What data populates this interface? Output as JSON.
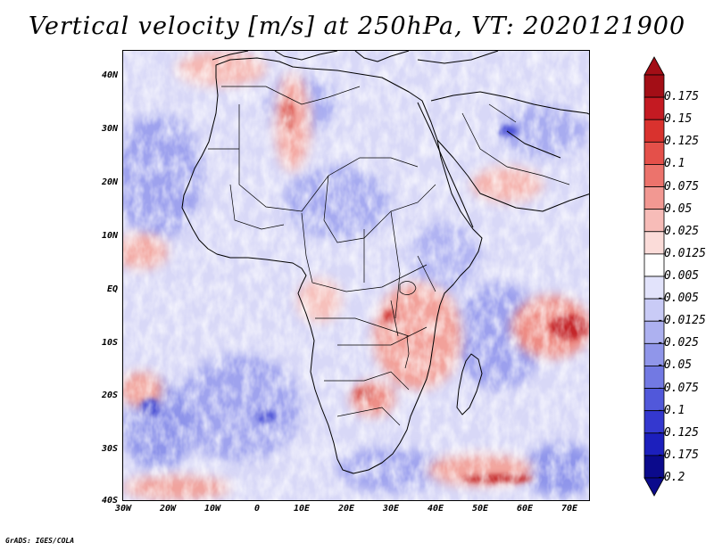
{
  "title": "Vertical velocity [m/s] at 250hPa, VT: 2020121900",
  "footer": {
    "credit": "GrADS: IGES/COLA"
  },
  "map": {
    "variable": "Vertical velocity",
    "units": "m/s",
    "level": "250hPa",
    "valid_time": "2020121900",
    "region": "Africa",
    "lon_range_deg": [
      -30,
      75
    ],
    "lat_range_deg": [
      -40,
      45
    ],
    "lat_ticks": [
      "40N",
      "30N",
      "20N",
      "10N",
      "EQ",
      "10S",
      "20S",
      "30S",
      "40S"
    ],
    "lon_ticks": [
      "30W",
      "20W",
      "10W",
      "0",
      "10E",
      "20E",
      "30E",
      "40E",
      "50E",
      "60E",
      "70E"
    ],
    "colorbar": {
      "levels": [
        "0.175",
        "0.15",
        "0.125",
        "0.1",
        "0.075",
        "0.05",
        "0.025",
        "0.0125",
        "0.005",
        "-0.005",
        "-0.0125",
        "-0.025",
        "-0.05",
        "-0.075",
        "-0.1",
        "-0.125",
        "-0.175",
        "-0.2"
      ],
      "colors": [
        "#a30e16",
        "#c41a22",
        "#d9322e",
        "#e4504a",
        "#ec736c",
        "#f29892",
        "#f7bcb8",
        "#fbdcd9",
        "#ffffff",
        "#e2e3fb",
        "#c9cbf6",
        "#adb1f0",
        "#9096ea",
        "#7279e3",
        "#5158da",
        "#3438cf",
        "#1c1fbd",
        "#0b0a8c"
      ]
    }
  }
}
